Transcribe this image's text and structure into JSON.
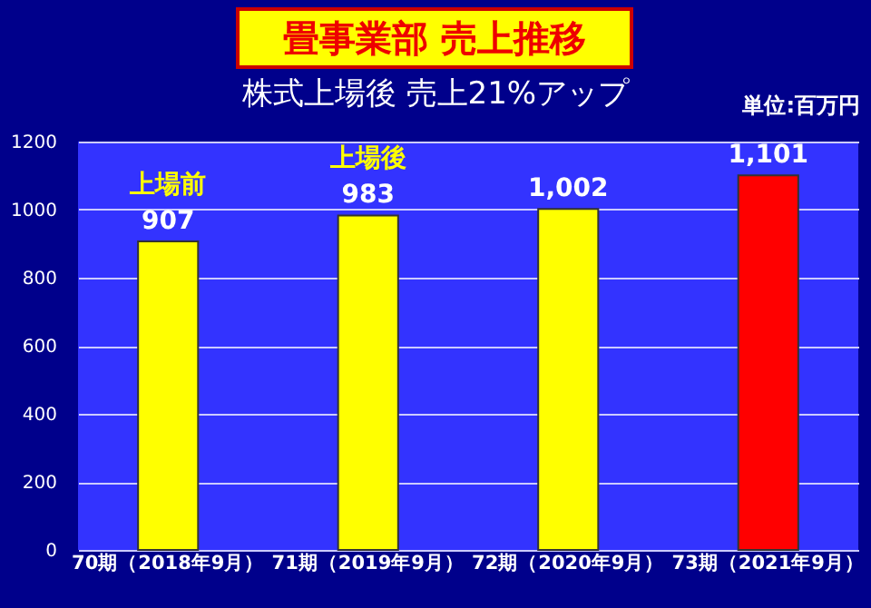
{
  "chart_data": {
    "type": "bar",
    "title": "畳事業部 売上推移",
    "subtitle": "株式上場後 売上21%アップ",
    "categories": [
      "70期（2018年9月）",
      "71期（2019年9月）",
      "72期（2020年9月）",
      "73期（2021年9月）"
    ],
    "values": [
      907,
      983,
      1002,
      1101
    ],
    "colors": [
      "#ffff00",
      "#ffff00",
      "#ffff00",
      "#ff0000"
    ],
    "value_labels": [
      "907",
      "983",
      "1,002",
      "1,101"
    ],
    "annotations": [
      "単位:百万円",
      {
        "text": "上場前",
        "x": "70期（2018年9月）",
        "y": 907
      },
      {
        "text": "上場後",
        "x": "71期（2019年9月）",
        "y": 983
      }
    ],
    "ylim": [
      0,
      1200
    ],
    "yticks": [
      0,
      200,
      400,
      600,
      800,
      1000,
      1200
    ],
    "grid": "y"
  }
}
